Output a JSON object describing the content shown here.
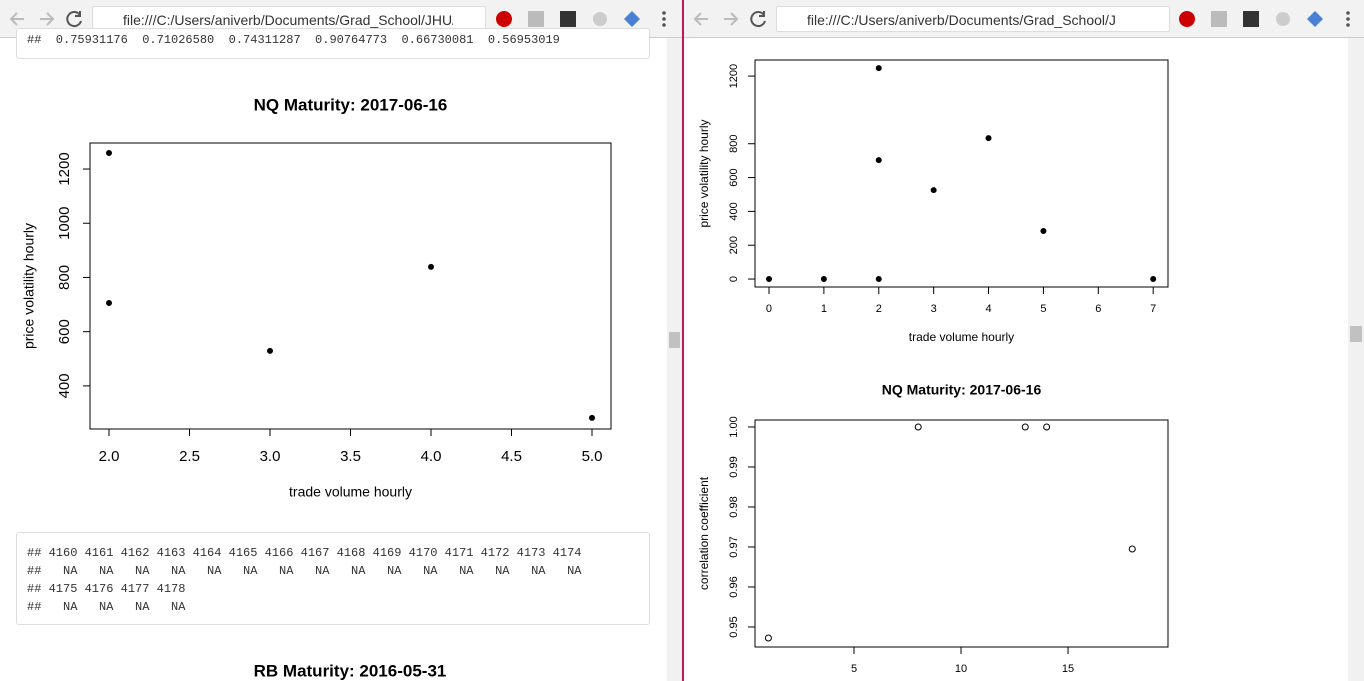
{
  "left": {
    "url": "file:///C:/Users/aniverb/Documents/Grad_School/JHU/",
    "output_top": "##  0.75931176  0.71026580  0.74311287  0.90764773  0.66730081  0.56953019",
    "chart": {
      "type": "scatter",
      "title": "NQ Maturity: 2017-06-16",
      "x_label": "trade volume hourly",
      "y_label": "price volatility hourly",
      "x": [
        2,
        2,
        3,
        4,
        5
      ],
      "y": [
        1259,
        706,
        529,
        839,
        282
      ],
      "marker": "filled",
      "xlim": [
        1.882,
        5.118
      ],
      "ylim": [
        241,
        1296
      ],
      "xticks": [
        {
          "value": 2,
          "label": "2.0"
        },
        2.5,
        {
          "value": 3,
          "label": "3.0"
        },
        3.5,
        {
          "value": 4,
          "label": "4.0"
        },
        4.5,
        {
          "value": 5,
          "label": "5.0"
        }
      ],
      "yticks": [
        400,
        600,
        800,
        1000,
        1200
      ]
    },
    "output_lines": [
      "## 4160 4161 4162 4163 4164 4165 4166 4167 4168 4169 4170 4171 4172 4173 4174",
      "##   NA   NA   NA   NA   NA   NA   NA   NA   NA   NA   NA   NA   NA   NA   NA",
      "## 4175 4176 4177 4178",
      "##   NA   NA   NA   NA"
    ],
    "next_heading": "RB Maturity: 2016-05-31"
  },
  "right": {
    "url": "file:///C:/Users/aniverb/Documents/Grad_School/JH",
    "charts": [
      {
        "type": "scatter",
        "x_label": "trade volume hourly",
        "y_label": "price volatility hourly",
        "x": [
          0,
          1,
          2,
          2,
          2,
          3,
          4,
          5,
          7
        ],
        "y": [
          0,
          0,
          0,
          1247,
          703,
          526,
          833,
          284,
          0
        ],
        "marker": "filled",
        "xlim": [
          -0.255,
          7.27
        ],
        "ylim": [
          -47,
          1295
        ],
        "xticks": [
          0,
          1,
          2,
          3,
          4,
          5,
          6,
          7
        ],
        "yticks": [
          0,
          200,
          400,
          600,
          800,
          1200
        ]
      },
      {
        "type": "scatter",
        "title": "NQ Maturity: 2017-06-16",
        "y_label": "correlation coefficient",
        "x": [
          1,
          8,
          13,
          14,
          18
        ],
        "y": [
          0.94725,
          1.0,
          1.0,
          1.0,
          0.9695
        ],
        "marker": "open",
        "xlim": [
          0.374,
          19.67
        ],
        "ylim": [
          0.945,
          1.00175
        ],
        "xticks": [
          5,
          10,
          15
        ],
        "yticks": [
          0.95,
          0.96,
          0.97,
          0.98,
          0.99,
          {
            "value": 1.0,
            "label": "1.00"
          }
        ]
      }
    ]
  }
}
